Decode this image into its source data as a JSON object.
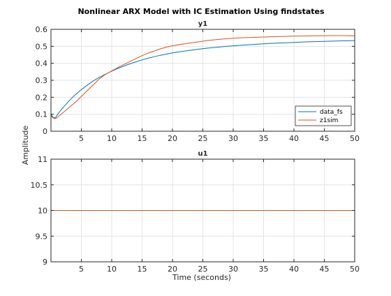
{
  "figure": {
    "title": "Nonlinear ARX Model with IC Estimation Using findstates",
    "ylabel": "Amplitude",
    "xlabel": "Time (seconds)"
  },
  "chart_data": [
    {
      "type": "line",
      "title": "y1",
      "xlim": [
        0,
        50
      ],
      "ylim": [
        0,
        0.6
      ],
      "xticks": [
        5,
        10,
        15,
        20,
        25,
        30,
        35,
        40,
        45,
        50
      ],
      "yticks": [
        0,
        0.1,
        0.2,
        0.3,
        0.4,
        0.5,
        0.6
      ],
      "xtick_labels": [
        "5",
        "10",
        "15",
        "20",
        "25",
        "30",
        "35",
        "40",
        "45",
        "50"
      ],
      "ytick_labels": [
        "0",
        "0.1",
        "0.2",
        "0.3",
        "0.4",
        "0.5",
        "0.6"
      ],
      "grid": true,
      "legend_position": "bottom-right",
      "series": [
        {
          "name": "data_fs",
          "color": "#0072BD",
          "x": [
            0,
            0.3,
            0.6,
            0.8,
            1,
            1.5,
            2,
            3,
            4,
            5,
            6,
            7,
            8,
            9,
            10,
            11,
            12,
            13,
            14,
            15,
            16,
            17,
            18,
            19,
            20,
            22,
            24,
            26,
            28,
            30,
            32,
            34,
            36,
            38,
            40,
            42,
            44,
            46,
            48,
            50
          ],
          "y": [
            0.1,
            0.085,
            0.078,
            0.082,
            0.095,
            0.118,
            0.14,
            0.18,
            0.215,
            0.245,
            0.272,
            0.297,
            0.318,
            0.336,
            0.354,
            0.37,
            0.384,
            0.397,
            0.409,
            0.42,
            0.43,
            0.439,
            0.447,
            0.454,
            0.461,
            0.472,
            0.482,
            0.49,
            0.497,
            0.503,
            0.508,
            0.513,
            0.517,
            0.52,
            0.523,
            0.526,
            0.528,
            0.53,
            0.532,
            0.534
          ]
        },
        {
          "name": "z1sim",
          "color": "#D95319",
          "x": [
            0,
            0.3,
            0.6,
            0.8,
            1,
            1.5,
            2,
            3,
            4,
            5,
            6,
            7,
            8,
            9,
            10,
            11,
            12,
            13,
            14,
            15,
            16,
            17,
            18,
            19,
            20,
            22,
            24,
            26,
            28,
            30,
            32,
            34,
            36,
            38,
            40,
            42,
            44,
            46,
            48,
            50
          ],
          "y": [
            0.09,
            0.08,
            0.074,
            0.076,
            0.08,
            0.095,
            0.11,
            0.14,
            0.17,
            0.205,
            0.24,
            0.275,
            0.31,
            0.335,
            0.355,
            0.375,
            0.393,
            0.41,
            0.428,
            0.445,
            0.46,
            0.472,
            0.485,
            0.495,
            0.503,
            0.515,
            0.525,
            0.535,
            0.542,
            0.548,
            0.551,
            0.554,
            0.556,
            0.558,
            0.56,
            0.561,
            0.562,
            0.563,
            0.563,
            0.562
          ]
        }
      ]
    },
    {
      "type": "line",
      "title": "u1",
      "xlim": [
        0,
        50
      ],
      "ylim": [
        9,
        11
      ],
      "xticks": [
        5,
        10,
        15,
        20,
        25,
        30,
        35,
        40,
        45,
        50
      ],
      "yticks": [
        9,
        9.5,
        10,
        10.5,
        11
      ],
      "xtick_labels": [
        "5",
        "10",
        "15",
        "20",
        "25",
        "30",
        "35",
        "40",
        "45",
        "50"
      ],
      "ytick_labels": [
        "9",
        "9.5",
        "10",
        "10.5",
        "11"
      ],
      "grid": true,
      "series": [
        {
          "color": "#0072BD",
          "x": [
            0,
            50
          ],
          "y": [
            10,
            10
          ]
        },
        {
          "color": "#D95319",
          "x": [
            0,
            50
          ],
          "y": [
            10,
            10
          ]
        }
      ]
    }
  ]
}
